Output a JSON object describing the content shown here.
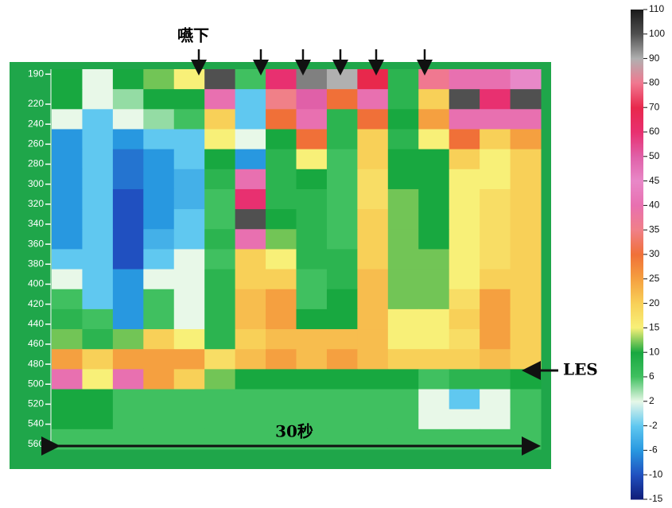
{
  "chart_data": {
    "type": "heatmap",
    "swallow_label": "嚥下",
    "les_label": "LES",
    "duration_label": "30秒",
    "y": [
      195,
      215,
      235,
      255,
      275,
      295,
      315,
      335,
      355,
      375,
      395,
      415,
      435,
      455,
      475,
      495,
      515,
      535,
      555
    ],
    "z": [
      [
        10,
        2,
        10,
        12,
        15,
        100,
        6,
        60,
        95,
        90,
        70,
        8,
        80,
        40,
        40,
        45
      ],
      [
        10,
        2,
        4,
        10,
        10,
        40,
        -2,
        35,
        50,
        30,
        40,
        8,
        20,
        100,
        60,
        100
      ],
      [
        2,
        -2,
        2,
        4,
        6,
        20,
        -2,
        30,
        40,
        8,
        30,
        10,
        25,
        40,
        40,
        40
      ],
      [
        -6,
        -2,
        -6,
        -2,
        -2,
        15,
        2,
        10,
        30,
        8,
        20,
        8,
        15,
        30,
        20,
        25
      ],
      [
        -6,
        -2,
        -8,
        -6,
        -2,
        10,
        -6,
        8,
        15,
        6,
        20,
        10,
        10,
        20,
        15,
        20
      ],
      [
        -6,
        -2,
        -8,
        -6,
        -4,
        8,
        40,
        8,
        10,
        6,
        18,
        10,
        10,
        15,
        15,
        20
      ],
      [
        -6,
        -2,
        -10,
        -6,
        -4,
        6,
        60,
        8,
        8,
        6,
        18,
        12,
        10,
        15,
        18,
        20
      ],
      [
        -6,
        -2,
        -10,
        -6,
        -2,
        6,
        100,
        10,
        8,
        6,
        20,
        12,
        10,
        15,
        18,
        20
      ],
      [
        -6,
        -2,
        -10,
        -4,
        -2,
        8,
        40,
        12,
        8,
        6,
        20,
        12,
        10,
        15,
        18,
        20
      ],
      [
        -2,
        -2,
        -10,
        -2,
        2,
        6,
        20,
        15,
        8,
        8,
        20,
        12,
        12,
        15,
        18,
        20
      ],
      [
        2,
        -2,
        -6,
        2,
        2,
        8,
        20,
        20,
        6,
        8,
        22,
        12,
        12,
        15,
        20,
        20
      ],
      [
        6,
        -2,
        -6,
        6,
        2,
        8,
        22,
        25,
        6,
        10,
        22,
        12,
        12,
        18,
        25,
        20
      ],
      [
        8,
        6,
        -6,
        6,
        2,
        8,
        22,
        25,
        10,
        10,
        22,
        15,
        15,
        20,
        25,
        20
      ],
      [
        12,
        8,
        12,
        20,
        15,
        8,
        20,
        22,
        22,
        22,
        22,
        15,
        15,
        18,
        25,
        20
      ],
      [
        25,
        20,
        25,
        25,
        25,
        18,
        22,
        25,
        22,
        25,
        22,
        20,
        20,
        20,
        22,
        20
      ],
      [
        40,
        15,
        40,
        25,
        20,
        12,
        10,
        10,
        10,
        10,
        10,
        10,
        6,
        8,
        8,
        10
      ],
      [
        10,
        10,
        6,
        6,
        6,
        6,
        6,
        6,
        6,
        6,
        6,
        6,
        2,
        -2,
        2,
        6
      ],
      [
        10,
        10,
        6,
        6,
        6,
        6,
        6,
        6,
        6,
        6,
        6,
        6,
        2,
        2,
        2,
        6
      ],
      [
        6,
        6,
        6,
        6,
        6,
        6,
        6,
        6,
        6,
        6,
        6,
        6,
        6,
        6,
        6,
        6
      ]
    ],
    "ylim": [
      185,
      565
    ],
    "yticks": [
      190,
      220,
      240,
      260,
      280,
      300,
      320,
      340,
      360,
      380,
      400,
      420,
      440,
      460,
      480,
      500,
      520,
      540,
      560
    ],
    "colorbar": {
      "ticks": [
        110,
        100,
        90,
        80,
        70,
        60,
        50,
        45,
        40,
        35,
        30,
        25,
        20,
        15,
        10,
        6,
        2,
        -2,
        -6,
        -10,
        -15
      ],
      "colors": [
        "#1a1a1a",
        "#505050",
        "#b0b0b0",
        "#f07890",
        "#e8284c",
        "#e83070",
        "#e060a8",
        "#e888c8",
        "#e870b0",
        "#f08088",
        "#f07038",
        "#f5a040",
        "#f8d058",
        "#f8f078",
        "#18a840",
        "#40c060",
        "#e8f8e8",
        "#60c8f0",
        "#2898e0",
        "#2050c0",
        "#101c78"
      ]
    }
  }
}
